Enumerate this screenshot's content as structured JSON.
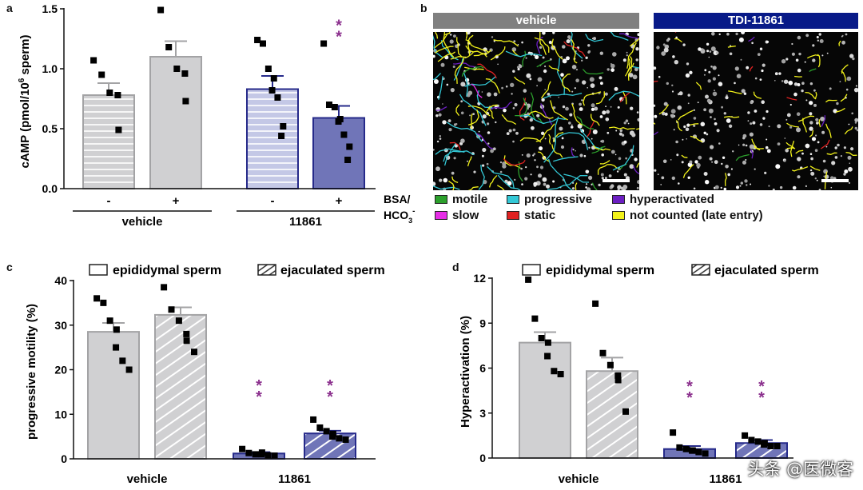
{
  "panels": {
    "a": "a",
    "b": "b",
    "c": "c",
    "d": "d"
  },
  "colors": {
    "vehicle_fill": "#d0d0d2",
    "vehicle_edge": "#a3a3a5",
    "drug_fill": "#7075b8",
    "drug_edge": "#262a8a",
    "drug_light_fill": "#c4c8e6",
    "sig_star": "#8b2f8d",
    "vehicle_header": "#808080",
    "drug_header": "#081a88"
  },
  "chart_data": [
    {
      "id": "a",
      "type": "bar",
      "ylabel": "cAMP (pmol/10^6 sperm)",
      "ylabel_parts": {
        "main": "cAMP (pmol/10",
        "sup": "6",
        "tail": " sperm)"
      },
      "ylim": [
        0,
        1.5
      ],
      "yticks": [
        "0.0",
        "0.5",
        "1.0",
        "1.5"
      ],
      "ytick_values": [
        0,
        0.5,
        1.0,
        1.5
      ],
      "condition_label": {
        "line1": "BSA/",
        "line2": "HCO",
        "sub": "3",
        "sup": "-"
      },
      "groups": [
        {
          "name": "vehicle",
          "bars": [
            {
              "sign": "-",
              "value": 0.78,
              "sem": 0.1,
              "points": [
                1.07,
                0.95,
                0.8,
                0.78,
                0.49
              ],
              "sig": ""
            },
            {
              "sign": "+",
              "value": 1.1,
              "sem": 0.13,
              "points": [
                1.49,
                1.18,
                1.0,
                0.96,
                0.73
              ],
              "sig": ""
            }
          ]
        },
        {
          "name": "11861",
          "bars": [
            {
              "sign": "-",
              "value": 0.83,
              "sem": 0.11,
              "points": [
                1.24,
                1.21,
                1.0,
                0.92,
                0.82,
                0.76,
                0.52,
                0.44
              ],
              "sig": ""
            },
            {
              "sign": "+",
              "value": 0.59,
              "sem": 0.1,
              "points": [
                1.21,
                0.7,
                0.68,
                0.58,
                0.56,
                0.45,
                0.35,
                0.24
              ],
              "sig": "**"
            }
          ]
        }
      ]
    },
    {
      "id": "c",
      "type": "bar",
      "ylabel": "progressive motility (%)",
      "ylim": [
        0,
        40
      ],
      "yticks": [
        "0",
        "10",
        "20",
        "30",
        "40"
      ],
      "ytick_values": [
        0,
        10,
        20,
        30,
        40
      ],
      "legend": [
        "epididymal sperm",
        "ejaculated sperm"
      ],
      "groups": [
        {
          "name": "vehicle",
          "bars": [
            {
              "kind": "epididymal",
              "value": 28.5,
              "sem": 2.0,
              "points": [
                36,
                35,
                31,
                29,
                25,
                22,
                20
              ],
              "sig": ""
            },
            {
              "kind": "ejaculated",
              "value": 32.3,
              "sem": 1.7,
              "points": [
                38.5,
                33.5,
                31,
                28,
                26.5,
                24
              ],
              "sig": ""
            }
          ]
        },
        {
          "name": "11861",
          "bars": [
            {
              "kind": "epididymal",
              "value": 1.2,
              "sem": 0.3,
              "points": [
                2.2,
                1.3,
                1.0,
                1.4,
                1.0,
                0.8,
                0.7
              ],
              "sig": "**"
            },
            {
              "kind": "ejaculated",
              "value": 5.7,
              "sem": 0.6,
              "points": [
                8.8,
                7.0,
                6.2,
                5.6,
                5.0,
                4.6,
                4.3
              ],
              "sig": "**"
            }
          ]
        }
      ]
    },
    {
      "id": "d",
      "type": "bar",
      "ylabel": "Hyperactivation (%)",
      "ylim": [
        0,
        12
      ],
      "yticks": [
        "0",
        "3",
        "6",
        "9",
        "12"
      ],
      "ytick_values": [
        0,
        3,
        6,
        9,
        12
      ],
      "legend": [
        "epididymal sperm",
        "ejaculated sperm"
      ],
      "groups": [
        {
          "name": "vehicle",
          "bars": [
            {
              "kind": "epididymal",
              "value": 7.7,
              "sem": 0.7,
              "points": [
                11.9,
                9.3,
                8.0,
                7.7,
                6.8,
                5.8,
                5.6
              ],
              "sig": ""
            },
            {
              "kind": "ejaculated",
              "value": 5.8,
              "sem": 0.9,
              "points": [
                10.3,
                7.0,
                6.2,
                5.5,
                5.2,
                3.1
              ],
              "sig": ""
            }
          ]
        },
        {
          "name": "11861",
          "bars": [
            {
              "kind": "epididymal",
              "value": 0.6,
              "sem": 0.2,
              "points": [
                1.7,
                0.7,
                0.6,
                0.5,
                0.5,
                0.4,
                0.3
              ],
              "sig": "**"
            },
            {
              "kind": "ejaculated",
              "value": 1.0,
              "sem": 0.2,
              "points": [
                1.5,
                1.2,
                1.1,
                1.0,
                0.9,
                0.8,
                0.8
              ],
              "sig": "**"
            }
          ]
        }
      ]
    }
  ],
  "panel_b": {
    "images": [
      {
        "title": "vehicle",
        "track_density": "high"
      },
      {
        "title": "TDI-11861",
        "track_density": "low"
      }
    ],
    "legend": [
      {
        "label": "motile",
        "color": "#2ca02c"
      },
      {
        "label": "progressive",
        "color": "#33c8d6"
      },
      {
        "label": "hyperactivated",
        "color": "#6c1fc2"
      },
      {
        "label": "slow",
        "color": "#e62ee6"
      },
      {
        "label": "static",
        "color": "#e02222"
      },
      {
        "label": "not counted (late entry)",
        "color": "#f2f21a"
      }
    ]
  },
  "watermark": "头条 @医微客"
}
